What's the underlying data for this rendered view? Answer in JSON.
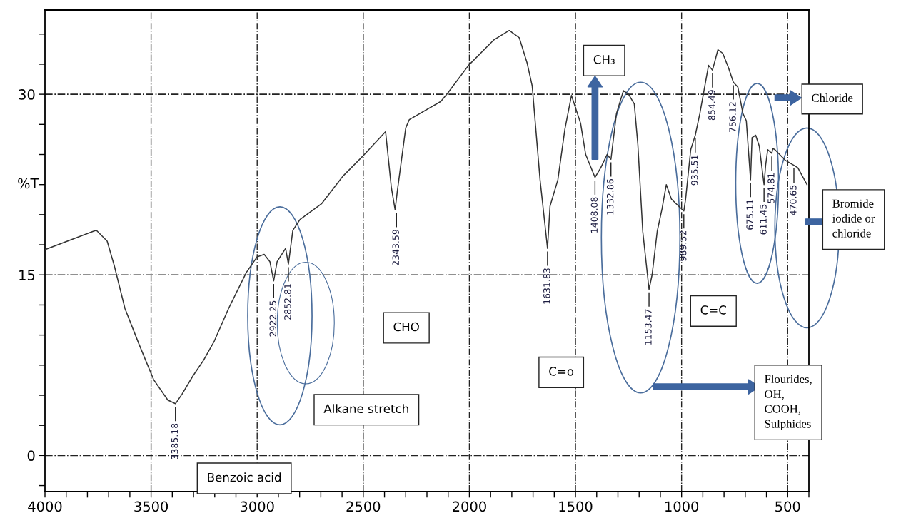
{
  "chart_data": {
    "type": "line",
    "ylabel": "%T",
    "series": [
      {
        "color": "#333333",
        "x": [
          4000,
          3775,
          3758,
          3707,
          3674,
          3623,
          3556,
          3488,
          3421,
          3385.18,
          3354,
          3303,
          3253,
          3202,
          3135,
          3051,
          3000,
          2967,
          2940,
          2922.25,
          2906,
          2866,
          2852.81,
          2832,
          2798,
          2697,
          2596,
          2495,
          2395,
          2368,
          2350,
          2340,
          2300,
          2283,
          2135,
          2102,
          2004,
          1886,
          1812,
          1765,
          1728,
          1704,
          1667,
          1631.83,
          1620,
          1583,
          1550,
          1519,
          1476,
          1452,
          1408.08,
          1381,
          1351,
          1332.86,
          1307,
          1274,
          1250,
          1223,
          1206,
          1183,
          1153.47,
          1139,
          1115,
          1092,
          1072,
          1048,
          1025,
          989.52,
          981,
          957,
          935.51,
          914,
          873,
          854.49,
          829,
          806,
          779,
          756.12,
          735,
          711,
          695,
          675.11,
          668,
          651,
          634,
          611.45,
          604,
          594,
          574.81,
          570,
          560,
          510,
          470.65,
          452,
          409
        ],
        "values": [
          17.1,
          18.6,
          18.7,
          17.8,
          15.8,
          12.2,
          9.2,
          6.3,
          4.6,
          4.3,
          5.1,
          6.6,
          7.9,
          9.5,
          12.2,
          15.2,
          16.5,
          16.7,
          16.1,
          14.5,
          16.1,
          17.2,
          15.9,
          18.7,
          19.6,
          20.9,
          23.2,
          25.0,
          26.9,
          22.3,
          20.4,
          21.9,
          27.2,
          27.9,
          29.4,
          30.1,
          32.4,
          34.5,
          35.3,
          34.7,
          32.6,
          30.7,
          22.9,
          17.2,
          20.7,
          22.9,
          27.1,
          29.9,
          27.6,
          25.0,
          23.1,
          23.9,
          25.0,
          24.6,
          28.4,
          30.3,
          30.0,
          29.2,
          25.8,
          18.6,
          13.8,
          15.0,
          18.6,
          20.5,
          22.5,
          21.3,
          20.9,
          20.3,
          21.3,
          25.4,
          26.6,
          28.4,
          32.4,
          32.0,
          33.7,
          33.4,
          32.2,
          31.0,
          30.6,
          28.4,
          27.8,
          22.9,
          26.4,
          26.6,
          25.7,
          22.5,
          24.1,
          25.4,
          25.1,
          25.5,
          25.4,
          24.5,
          24.1,
          23.9,
          22.5
        ]
      }
    ],
    "xlim": [
      4000,
      400
    ],
    "xticks": [
      4000,
      {
        "value": 3900,
        "label": null
      },
      {
        "value": 3800,
        "label": null
      },
      {
        "value": 3700,
        "label": null
      },
      {
        "value": 3600,
        "label": null
      },
      3500,
      {
        "value": 3400,
        "label": null
      },
      {
        "value": 3300,
        "label": null
      },
      {
        "value": 3200,
        "label": null
      },
      {
        "value": 3100,
        "label": null
      },
      3000,
      {
        "value": 2900,
        "label": null
      },
      {
        "value": 2800,
        "label": null
      },
      {
        "value": 2700,
        "label": null
      },
      {
        "value": 2600,
        "label": null
      },
      2500,
      {
        "value": 2400,
        "label": null
      },
      {
        "value": 2300,
        "label": null
      },
      {
        "value": 2200,
        "label": null
      },
      {
        "value": 2100,
        "label": null
      },
      2000,
      {
        "value": 1900,
        "label": null
      },
      {
        "value": 1800,
        "label": null
      },
      {
        "value": 1700,
        "label": null
      },
      {
        "value": 1600,
        "label": null
      },
      1500,
      {
        "value": 1400,
        "label": null
      },
      {
        "value": 1300,
        "label": null
      },
      {
        "value": 1200,
        "label": null
      },
      {
        "value": 1100,
        "label": null
      },
      1000,
      {
        "value": 900,
        "label": null
      },
      {
        "value": 800,
        "label": null
      },
      {
        "value": 700,
        "label": null
      },
      {
        "value": 600,
        "label": null
      },
      500,
      {
        "value": 400,
        "label": null
      }
    ],
    "ylim": [
      -3,
      37
    ],
    "yticks": [
      {
        "value": -2.5,
        "label": null
      },
      0,
      {
        "value": 2.5,
        "label": null
      },
      {
        "value": 5,
        "label": null
      },
      {
        "value": 7.5,
        "label": null
      },
      {
        "value": 10,
        "label": null
      },
      {
        "value": 12.5,
        "label": null
      },
      15,
      {
        "value": 17.5,
        "label": null
      },
      {
        "value": 20,
        "label": null
      },
      {
        "value": 22.5,
        "label": null
      },
      {
        "value": 25,
        "label": null
      },
      {
        "value": 27.5,
        "label": null
      },
      30,
      {
        "value": 32.5,
        "label": null
      },
      {
        "value": 35,
        "label": null
      }
    ],
    "grid": true,
    "annotations": [
      {
        "text": "3385.18",
        "x": 3385.18,
        "y": 4.3
      },
      {
        "text": "2922.25",
        "x": 2922.25,
        "y": 14.5
      },
      {
        "text": "2852.81",
        "x": 2852.81,
        "y": 15.9
      },
      {
        "text": "2343.59",
        "x": 2343.59,
        "y": 20.4
      },
      {
        "text": "1631.83",
        "x": 1631.83,
        "y": 17.2
      },
      {
        "text": "1408.08",
        "x": 1408.08,
        "y": 23.1
      },
      {
        "text": "1332.86",
        "x": 1332.86,
        "y": 24.6
      },
      {
        "text": "1153.47",
        "x": 1153.47,
        "y": 13.8
      },
      {
        "text": "989.52",
        "x": 989.52,
        "y": 20.3
      },
      {
        "text": "935.51",
        "x": 935.51,
        "y": 26.6
      },
      {
        "text": "854.49",
        "x": 854.49,
        "y": 32.0
      },
      {
        "text": "756.12",
        "x": 756.12,
        "y": 31.0
      },
      {
        "text": "675.11",
        "x": 675.11,
        "y": 22.9
      },
      {
        "text": "611.45",
        "x": 611.45,
        "y": 22.5
      },
      {
        "text": "574.81",
        "x": 574.81,
        "y": 25.1
      },
      {
        "text": "470.65",
        "x": 470.65,
        "y": 24.1
      },
      "CH₃",
      "Chloride",
      "Bromide\niodide or\nchloride",
      "CHO",
      "Alkane stretch",
      "C=o",
      "C=C",
      "Flourides,\nOH,\nCOOH,\nSulphides",
      "Benzoic acid"
    ]
  }
}
